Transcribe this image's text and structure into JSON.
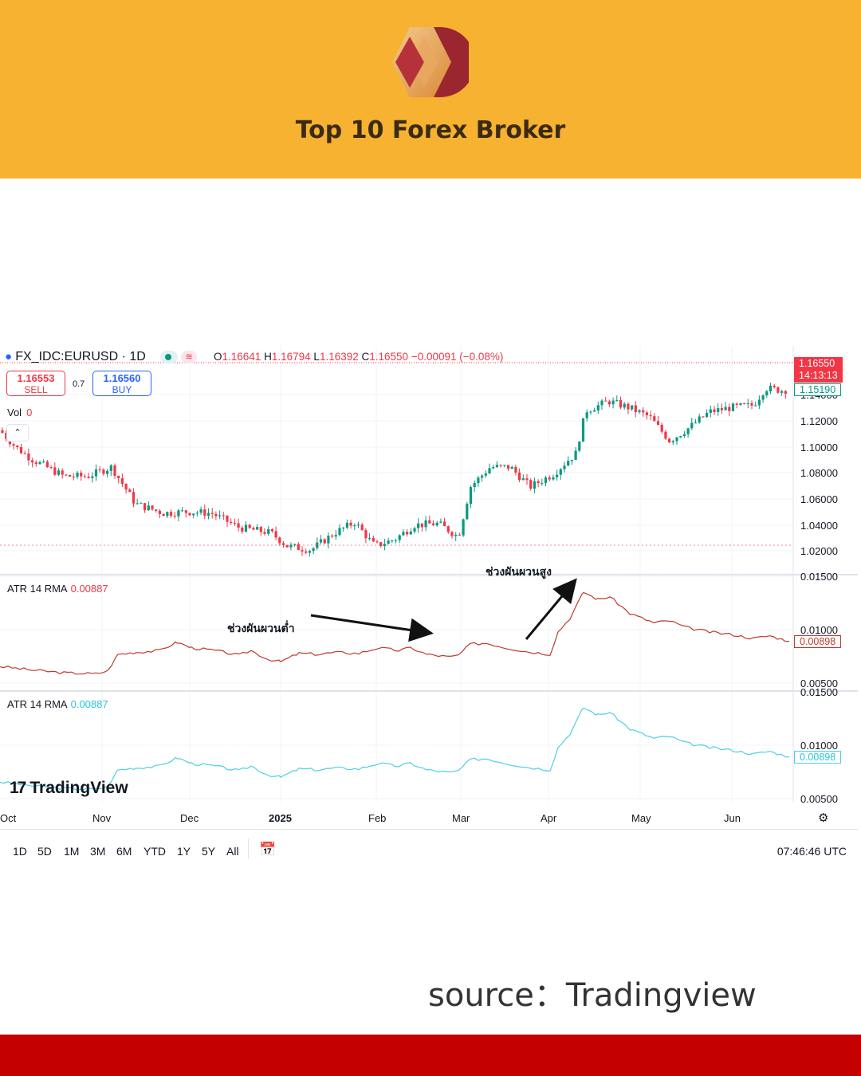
{
  "brand": {
    "name": "Top 10 Forex Broker"
  },
  "chart_header": {
    "symbol": "FX_IDC:EURUSD · 1D",
    "ohlc": {
      "o_label": "O",
      "o": "1.16641",
      "h_label": "H",
      "h": "1.16794",
      "l_label": "L",
      "l": "1.16392",
      "c_label": "C",
      "c": "1.16550",
      "change": "−0.00091 (−0.08%)"
    },
    "sell": {
      "price": "1.16553",
      "label": "SELL"
    },
    "spread": "0.7",
    "buy": {
      "price": "1.16560",
      "label": "BUY"
    },
    "vol_label": "Vol",
    "vol_value": "0"
  },
  "price_axis": {
    "labels": [
      "1.14000",
      "1.12000",
      "1.10000",
      "1.08000",
      "1.06000",
      "1.04000",
      "1.02000"
    ],
    "current_price": "1.16550",
    "countdown": "14:13:13",
    "marker": "1.15190"
  },
  "atr_red": {
    "label": "ATR 14 RMA",
    "value": "0.00887",
    "axis": [
      "0.01500",
      "0.01000",
      "0.00500"
    ],
    "last": "0.00898"
  },
  "atr_cyan": {
    "label": "ATR 14 RMA",
    "value": "0.00887",
    "axis": [
      "0.01500",
      "0.01000",
      "0.00500"
    ],
    "last": "0.00898"
  },
  "time_axis": [
    "Oct",
    "Nov",
    "Dec",
    "2025",
    "Feb",
    "Mar",
    "Apr",
    "May",
    "Jun"
  ],
  "annotations": {
    "low_volatility": "ช่วงผันผวนต่ำ",
    "high_volatility": "ช่วงผันผวนสูง"
  },
  "watermark": "TradingView",
  "ranges": [
    "1D",
    "5D",
    "1M",
    "3M",
    "6M",
    "YTD",
    "1Y",
    "5Y",
    "All"
  ],
  "clock": "07:46:46 UTC",
  "source": "source：Tradingview",
  "colors": {
    "header": "#f6b230",
    "footer": "#c40000",
    "up": "#089981",
    "down": "#f23645",
    "atr_red": "#c0392b",
    "atr_cyan": "#4dd0e1"
  },
  "chart_data": {
    "type": "candlestick",
    "x": [
      "Oct",
      "Nov",
      "Dec",
      "2025",
      "Feb",
      "Mar",
      "Apr",
      "May",
      "Jun"
    ],
    "close_approx": [
      1.112,
      1.09,
      1.055,
      1.035,
      1.03,
      1.04,
      1.085,
      1.135,
      1.15,
      1.1655
    ],
    "ylim": [
      1.01,
      1.17
    ],
    "atr_approx": [
      0.0063,
      0.0056,
      0.0082,
      0.0075,
      0.0083,
      0.0075,
      0.0085,
      0.0143,
      0.0105,
      0.009
    ],
    "atr_ylim": [
      0.0045,
      0.016
    ]
  }
}
